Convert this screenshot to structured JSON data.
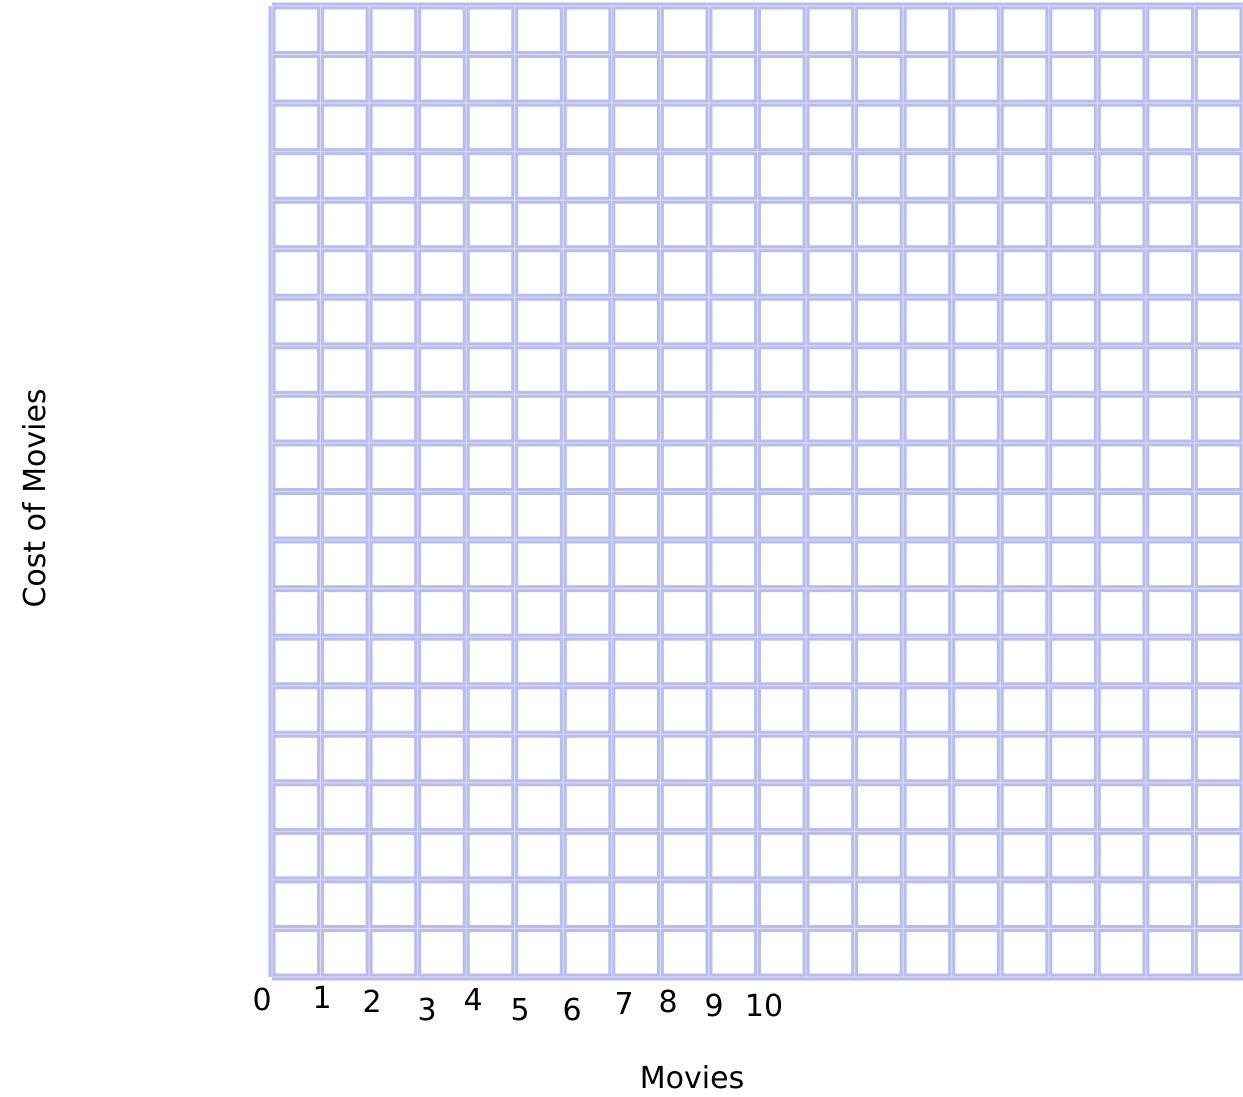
{
  "chart_data": {
    "type": "scatter",
    "title": "",
    "xlabel": "Movies",
    "ylabel": "Cost of Movies",
    "x_ticks": [
      "0",
      "1",
      "2",
      "3",
      "4",
      "5",
      "6",
      "7",
      "8",
      "9",
      "10"
    ],
    "y_ticks": [],
    "series": [],
    "grid": true,
    "grid_color": "#b8bdf0",
    "grid_columns": 20,
    "grid_rows": 20
  }
}
